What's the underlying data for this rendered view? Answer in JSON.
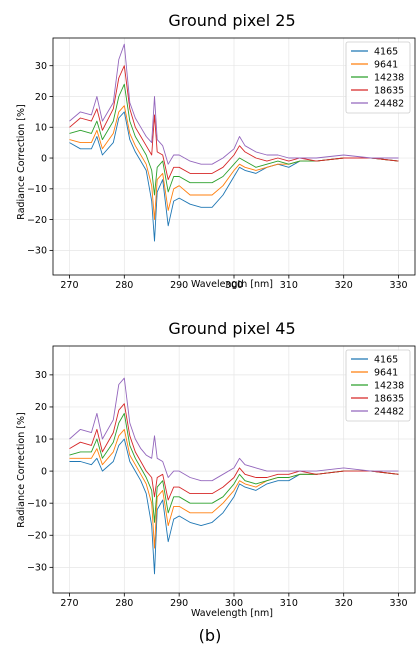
{
  "figure": {
    "caption": "(b)"
  },
  "chart_data": [
    {
      "type": "line",
      "title": "Ground pixel 25",
      "xlabel": "Wavelength [nm]",
      "ylabel": "Radiance Correction [%]",
      "xlim": [
        267,
        333
      ],
      "ylim": [
        -38,
        39
      ],
      "xticks": [
        270,
        280,
        290,
        300,
        310,
        320,
        330
      ],
      "yticks": [
        -30,
        -20,
        -10,
        0,
        10,
        20,
        30
      ],
      "grid": true,
      "legend_position": "top-right",
      "series": [
        {
          "name": "4165",
          "color": "#1f77b4",
          "x": [
            270,
            272,
            274,
            275,
            276,
            278,
            279,
            280,
            281,
            282,
            283,
            284,
            285,
            285.5,
            286,
            287,
            288,
            289,
            290,
            292,
            294,
            296,
            298,
            300,
            301,
            302,
            304,
            306,
            308,
            310,
            312,
            315,
            320,
            325,
            330
          ],
          "y": [
            5,
            3,
            3,
            7,
            1,
            5,
            13,
            15,
            6,
            2,
            -1,
            -4,
            -14,
            -27,
            -11,
            -7,
            -22,
            -14,
            -13,
            -15,
            -16,
            -16,
            -12,
            -6,
            -3,
            -4,
            -5,
            -3,
            -2,
            -3,
            -1,
            -1,
            0,
            0,
            -1
          ]
        },
        {
          "name": "9641",
          "color": "#ff7f0e",
          "x": [
            270,
            272,
            274,
            275,
            276,
            278,
            279,
            280,
            281,
            282,
            283,
            284,
            285,
            285.5,
            286,
            287,
            288,
            289,
            290,
            292,
            294,
            296,
            298,
            300,
            301,
            302,
            304,
            306,
            308,
            310,
            312,
            315,
            320,
            325,
            330
          ],
          "y": [
            6,
            5,
            5,
            9,
            3,
            8,
            15,
            17,
            8,
            4,
            1,
            -2,
            -9,
            -20,
            -7,
            -5,
            -17,
            -10,
            -9,
            -12,
            -12,
            -12,
            -9,
            -4,
            -2,
            -3,
            -4,
            -3,
            -2,
            -2,
            -1,
            -1,
            0,
            0,
            -1
          ]
        },
        {
          "name": "14238",
          "color": "#2ca02c",
          "x": [
            270,
            272,
            274,
            275,
            276,
            278,
            279,
            280,
            281,
            282,
            283,
            284,
            285,
            285.5,
            286,
            287,
            288,
            289,
            290,
            292,
            294,
            296,
            298,
            300,
            301,
            302,
            304,
            306,
            308,
            310,
            312,
            315,
            320,
            325,
            330
          ],
          "y": [
            8,
            9,
            8,
            12,
            6,
            12,
            20,
            24,
            12,
            7,
            4,
            1,
            -4,
            -12,
            -3,
            -1,
            -11,
            -6,
            -6,
            -8,
            -8,
            -8,
            -6,
            -2,
            0,
            -1,
            -3,
            -2,
            -1,
            -2,
            -1,
            -1,
            0,
            0,
            -1
          ]
        },
        {
          "name": "18635",
          "color": "#d62728",
          "x": [
            270,
            272,
            274,
            275,
            276,
            278,
            279,
            280,
            281,
            282,
            283,
            284,
            285,
            285.5,
            286,
            287,
            288,
            289,
            290,
            292,
            294,
            296,
            298,
            300,
            301,
            302,
            304,
            306,
            308,
            310,
            312,
            315,
            320,
            325,
            330
          ],
          "y": [
            10,
            13,
            12,
            16,
            9,
            16,
            26,
            30,
            16,
            10,
            7,
            4,
            1,
            14,
            2,
            1,
            -7,
            -3,
            -3,
            -5,
            -5,
            -5,
            -3,
            1,
            4,
            2,
            0,
            -1,
            0,
            -1,
            0,
            -1,
            0,
            0,
            -1
          ]
        },
        {
          "name": "24482",
          "color": "#9467bd",
          "x": [
            270,
            272,
            274,
            275,
            276,
            278,
            279,
            280,
            281,
            282,
            283,
            284,
            285,
            285.5,
            286,
            287,
            288,
            289,
            290,
            292,
            294,
            296,
            298,
            300,
            301,
            302,
            304,
            306,
            308,
            310,
            312,
            315,
            320,
            325,
            330
          ],
          "y": [
            12,
            15,
            14,
            20,
            12,
            18,
            32,
            37,
            18,
            13,
            10,
            7,
            5,
            20,
            6,
            4,
            -2,
            1,
            1,
            -1,
            -2,
            -2,
            0,
            3,
            7,
            4,
            2,
            1,
            1,
            0,
            0,
            0,
            1,
            0,
            0
          ]
        }
      ]
    },
    {
      "type": "line",
      "title": "Ground pixel 45",
      "xlabel": "Wavelength [nm]",
      "ylabel": "Radiance Correction [%]",
      "xlim": [
        267,
        333
      ],
      "ylim": [
        -38,
        39
      ],
      "xticks": [
        270,
        280,
        290,
        300,
        310,
        320,
        330
      ],
      "yticks": [
        -30,
        -20,
        -10,
        0,
        10,
        20,
        30
      ],
      "grid": true,
      "legend_position": "top-right",
      "series": [
        {
          "name": "4165",
          "color": "#1f77b4",
          "x": [
            270,
            272,
            274,
            275,
            276,
            278,
            279,
            280,
            281,
            282,
            283,
            284,
            285,
            285.5,
            286,
            287,
            288,
            289,
            290,
            292,
            294,
            296,
            298,
            300,
            301,
            302,
            304,
            306,
            308,
            310,
            312,
            315,
            320,
            325,
            330
          ],
          "y": [
            3,
            3,
            2,
            4,
            0,
            3,
            8,
            10,
            3,
            0,
            -3,
            -7,
            -17,
            -32,
            -12,
            -9,
            -22,
            -15,
            -14,
            -16,
            -17,
            -16,
            -13,
            -8,
            -4,
            -5,
            -6,
            -4,
            -3,
            -3,
            -1,
            -1,
            0,
            0,
            -1
          ]
        },
        {
          "name": "9641",
          "color": "#ff7f0e",
          "x": [
            270,
            272,
            274,
            275,
            276,
            278,
            279,
            280,
            281,
            282,
            283,
            284,
            285,
            285.5,
            286,
            287,
            288,
            289,
            290,
            292,
            294,
            296,
            298,
            300,
            301,
            302,
            304,
            306,
            308,
            310,
            312,
            315,
            320,
            325,
            330
          ],
          "y": [
            4,
            4,
            4,
            7,
            2,
            6,
            11,
            13,
            5,
            2,
            -1,
            -4,
            -10,
            -24,
            -8,
            -6,
            -17,
            -11,
            -11,
            -13,
            -13,
            -13,
            -10,
            -6,
            -3,
            -4,
            -5,
            -3,
            -2,
            -2,
            -1,
            -1,
            0,
            0,
            -1
          ]
        },
        {
          "name": "14238",
          "color": "#2ca02c",
          "x": [
            270,
            272,
            274,
            275,
            276,
            278,
            279,
            280,
            281,
            282,
            283,
            284,
            285,
            285.5,
            286,
            287,
            288,
            289,
            290,
            292,
            294,
            296,
            298,
            300,
            301,
            302,
            304,
            306,
            308,
            310,
            312,
            315,
            320,
            325,
            330
          ],
          "y": [
            5,
            6,
            6,
            10,
            4,
            9,
            15,
            18,
            8,
            4,
            1,
            -2,
            -6,
            -16,
            -5,
            -3,
            -13,
            -8,
            -8,
            -10,
            -10,
            -10,
            -8,
            -4,
            -1,
            -3,
            -4,
            -3,
            -2,
            -2,
            -1,
            -1,
            0,
            0,
            -1
          ]
        },
        {
          "name": "18635",
          "color": "#d62728",
          "x": [
            270,
            272,
            274,
            275,
            276,
            278,
            279,
            280,
            281,
            282,
            283,
            284,
            285,
            285.5,
            286,
            287,
            288,
            289,
            290,
            292,
            294,
            296,
            298,
            300,
            301,
            302,
            304,
            306,
            308,
            310,
            312,
            315,
            320,
            325,
            330
          ],
          "y": [
            7,
            9,
            8,
            13,
            6,
            12,
            19,
            21,
            11,
            6,
            3,
            0,
            -2,
            -8,
            -2,
            -1,
            -9,
            -5,
            -5,
            -7,
            -7,
            -7,
            -5,
            -2,
            1,
            -1,
            -2,
            -2,
            -1,
            -1,
            0,
            -1,
            0,
            0,
            -1
          ]
        },
        {
          "name": "24482",
          "color": "#9467bd",
          "x": [
            270,
            272,
            274,
            275,
            276,
            278,
            279,
            280,
            281,
            282,
            283,
            284,
            285,
            285.5,
            286,
            287,
            288,
            289,
            290,
            292,
            294,
            296,
            298,
            300,
            301,
            302,
            304,
            306,
            308,
            310,
            312,
            315,
            320,
            325,
            330
          ],
          "y": [
            10,
            13,
            12,
            18,
            10,
            16,
            27,
            29,
            15,
            10,
            7,
            5,
            4,
            11,
            4,
            3,
            -2,
            0,
            0,
            -2,
            -3,
            -3,
            -1,
            1,
            4,
            2,
            1,
            0,
            0,
            0,
            0,
            0,
            1,
            0,
            0
          ]
        }
      ]
    }
  ]
}
